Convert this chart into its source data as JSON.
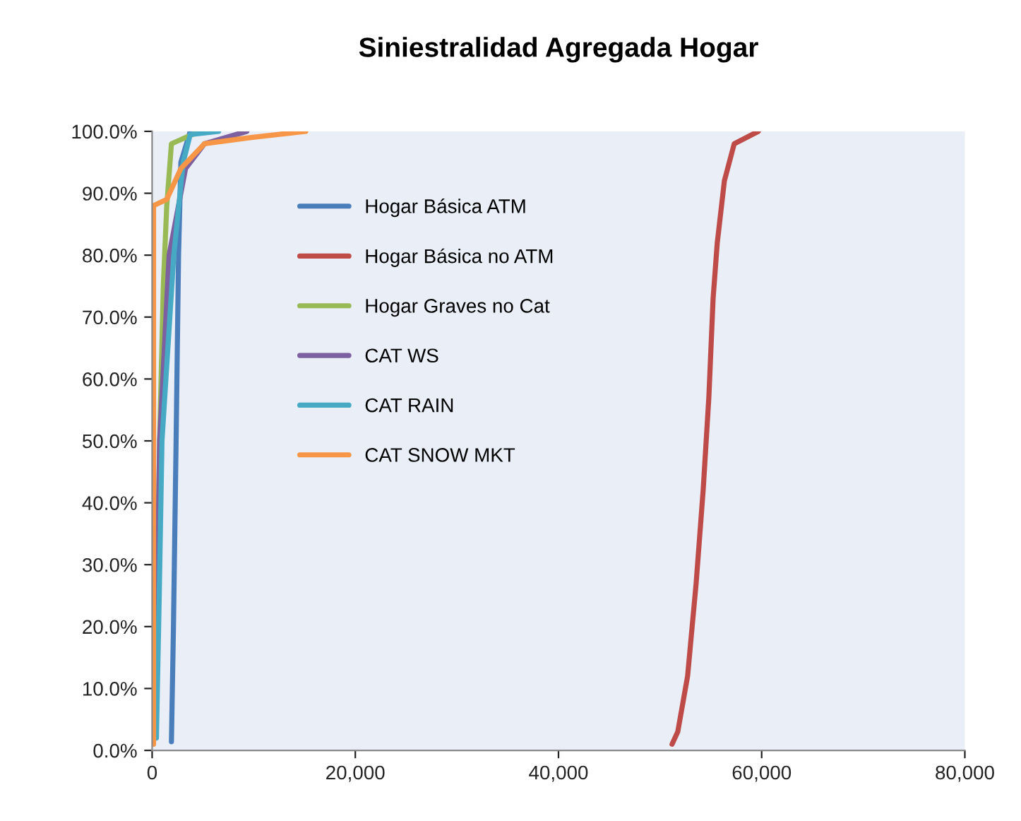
{
  "chart_data": {
    "type": "line",
    "title": "Siniestralidad Agregada Hogar",
    "xlim": [
      0,
      80000
    ],
    "ylim": [
      0,
      100
    ],
    "xticks": [
      {
        "value": 0,
        "label": "0"
      },
      {
        "value": 20000,
        "label": "20,000"
      },
      {
        "value": 40000,
        "label": "40,000"
      },
      {
        "value": 60000,
        "label": "60,000"
      },
      {
        "value": 80000,
        "label": "80,000"
      }
    ],
    "yticks": [
      {
        "value": 0,
        "label": "0.0%"
      },
      {
        "value": 10,
        "label": "10.0%"
      },
      {
        "value": 20,
        "label": "20.0%"
      },
      {
        "value": 30,
        "label": "30.0%"
      },
      {
        "value": 40,
        "label": "40.0%"
      },
      {
        "value": 50,
        "label": "50.0%"
      },
      {
        "value": 60,
        "label": "60.0%"
      },
      {
        "value": 70,
        "label": "70.0%"
      },
      {
        "value": 80,
        "label": "80.0%"
      },
      {
        "value": 90,
        "label": "90.0%"
      },
      {
        "value": 100,
        "label": "100.0%"
      }
    ],
    "grid": false,
    "legend": "top left",
    "marker": "none",
    "line_style": "solid",
    "series": [
      {
        "name": "Hogar Básica ATM",
        "color": "#4a7ebb",
        "x": [
          1900,
          2100,
          2360,
          2600,
          2830,
          3750
        ],
        "values": [
          1.4,
          20,
          50,
          80,
          95,
          100
        ]
      },
      {
        "name": "Hogar Básica no ATM",
        "color": "#be4b48",
        "x": [
          51180,
          51740,
          52710,
          53550,
          54240,
          54800,
          55220,
          55630,
          56330,
          57300,
          59670
        ],
        "values": [
          1,
          3,
          12,
          27,
          42,
          57,
          73,
          82,
          92,
          98,
          100
        ]
      },
      {
        "name": "Hogar Graves no Cat",
        "color": "#98b954",
        "x": [
          280,
          500,
          740,
          1100,
          1440,
          1900,
          4680
        ],
        "values": [
          4,
          25,
          50,
          75,
          88,
          98,
          100
        ]
      },
      {
        "name": "CAT WS",
        "color": "#7d60a0",
        "x": [
          280,
          500,
          740,
          1670,
          3290,
          5150,
          9320
        ],
        "values": [
          2,
          25,
          50,
          80,
          94,
          98,
          100
        ]
      },
      {
        "name": "CAT RAIN",
        "color": "#46aac5",
        "x": [
          420,
          700,
          970,
          2130,
          3060,
          3750,
          6540
        ],
        "values": [
          2,
          25,
          50,
          80,
          95,
          99.5,
          100
        ]
      },
      {
        "name": "CAT SNOW MKT",
        "color": "#f79646",
        "x": [
          140,
          140,
          140,
          1440,
          2830,
          5150,
          9740,
          15120
        ],
        "values": [
          1,
          50,
          88,
          89,
          94,
          98,
          99,
          100
        ]
      }
    ]
  }
}
